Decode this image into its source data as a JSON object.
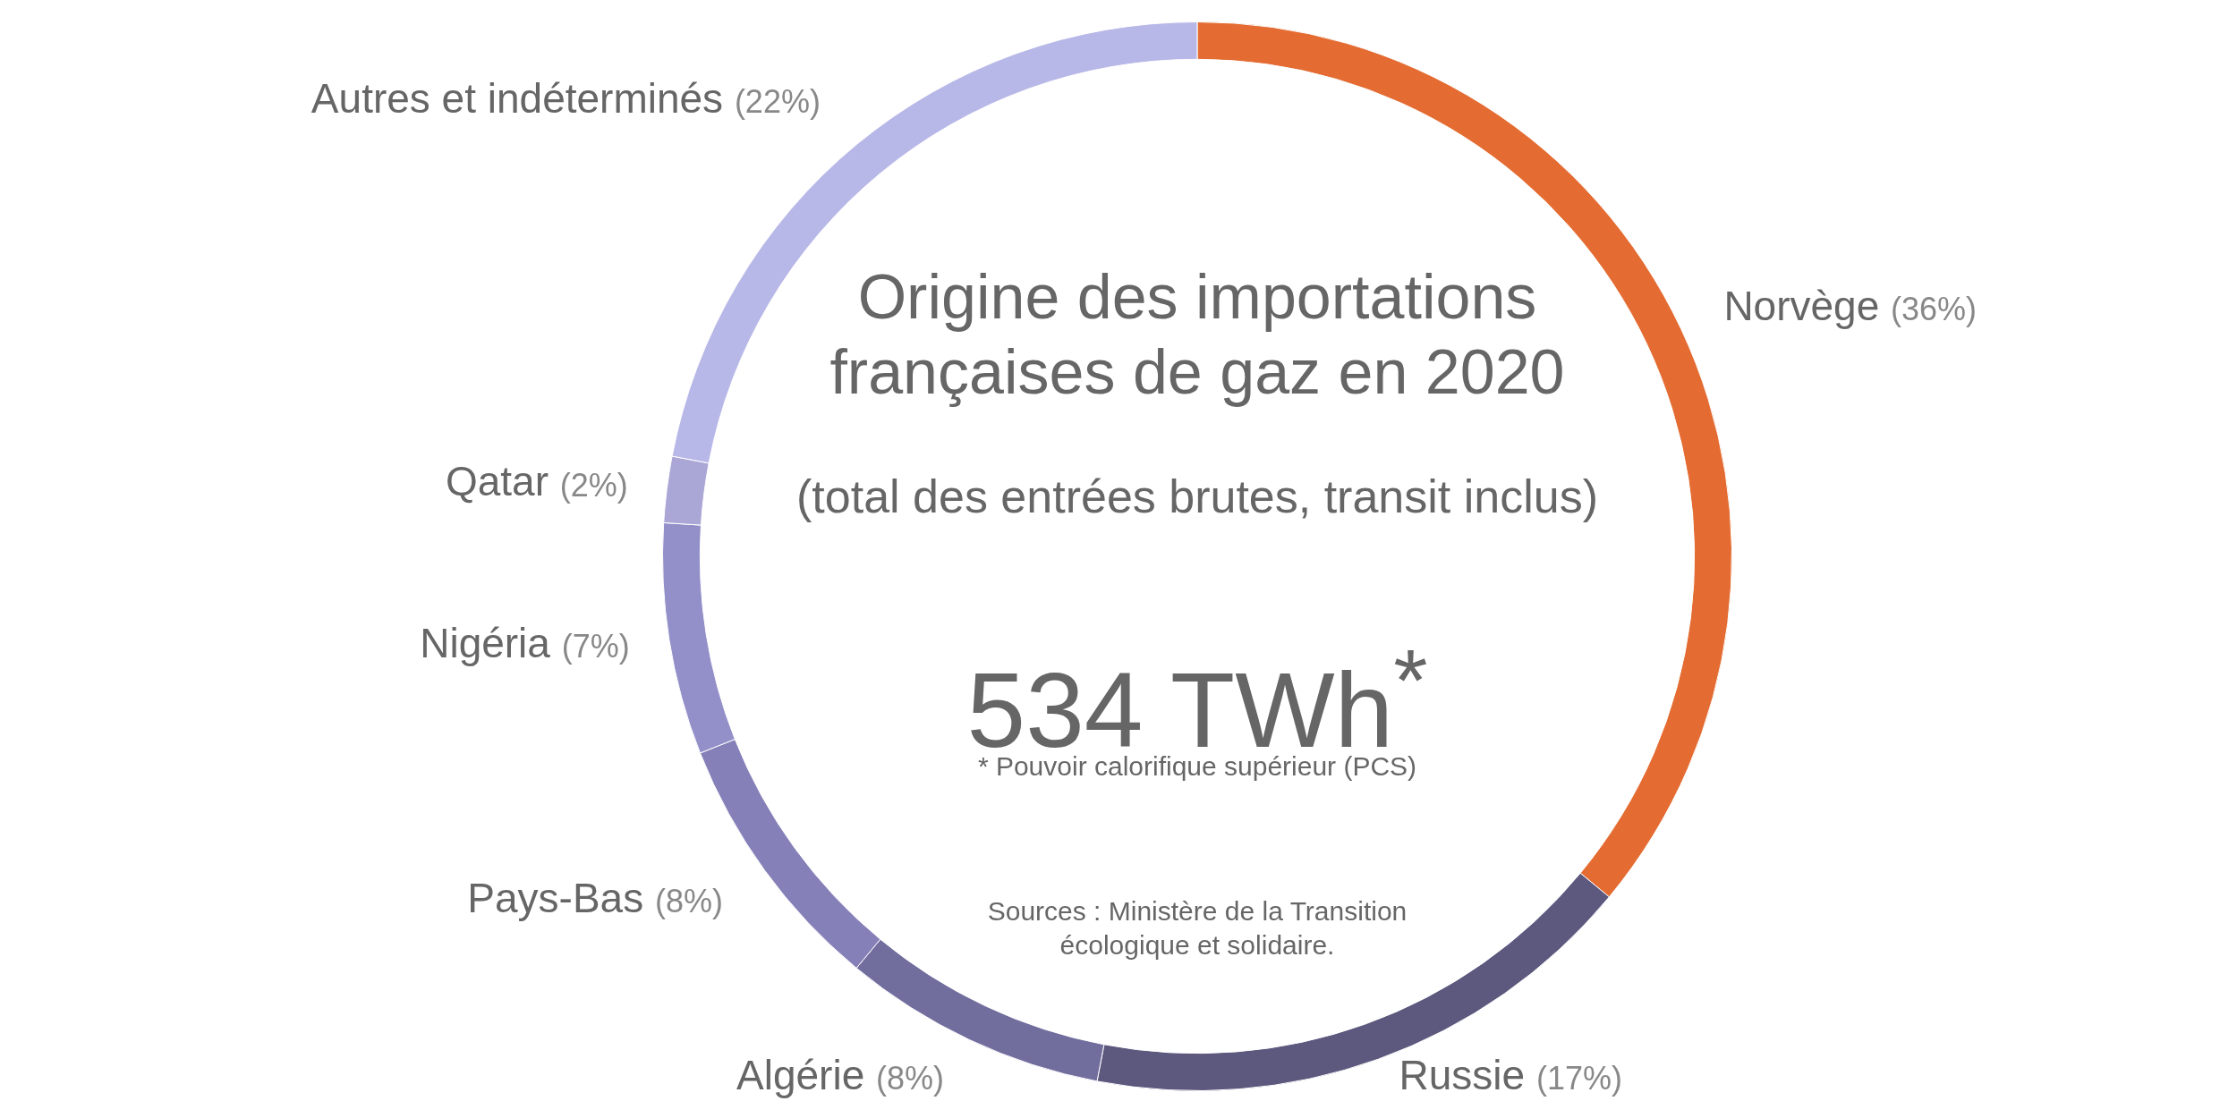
{
  "chart_data": {
    "type": "donut",
    "title": "Origine des importations françaises de gaz en 2020",
    "subtitle": "(total des entrées brutes, transit inclus)",
    "categories": [
      "Norvège",
      "Russie",
      "Algérie",
      "Pays-Bas",
      "Nigéria",
      "Qatar",
      "Autres et indéterminés"
    ],
    "values": [
      36,
      17,
      8,
      8,
      7,
      2,
      22
    ],
    "value_labels": [
      "(36%)",
      "(17%)",
      "(8%)",
      "(8%)",
      "(7%)",
      "(2%)",
      "(22%)"
    ],
    "colors": [
      "#e46c32",
      "#5c587e",
      "#716e9e",
      "#8580b8",
      "#9390c9",
      "#aaa6d6",
      "#b8b8e8"
    ],
    "annotations": [
      "534 TWh$^{*}$",
      "* Pouvoir calorifique supérieur (PCS)",
      "Sources : Ministère de la Transition écologique et solidaire."
    ]
  }
}
